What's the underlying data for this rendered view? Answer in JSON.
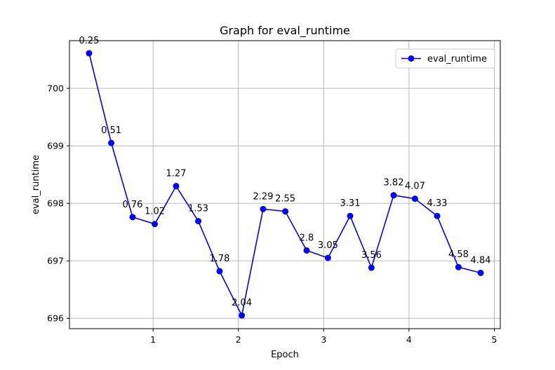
{
  "chart_data": {
    "type": "line",
    "title": "Graph for eval_runtime",
    "xlabel": "Epoch",
    "ylabel": "eval_runtime",
    "xlim": [
      0.02,
      5.07
    ],
    "ylim": [
      695.82,
      700.83
    ],
    "xticks": [
      1,
      2,
      3,
      4,
      5
    ],
    "yticks": [
      696,
      697,
      698,
      699,
      700
    ],
    "grid": true,
    "legend_position": "top-right",
    "series": [
      {
        "name": "eval_runtime",
        "color": "#0000ff",
        "points": [
          {
            "x": 0.25,
            "y": 700.61,
            "label": "0.25"
          },
          {
            "x": 0.51,
            "y": 699.05,
            "label": "0.51"
          },
          {
            "x": 0.76,
            "y": 697.76,
            "label": "0.76"
          },
          {
            "x": 1.02,
            "y": 697.64,
            "label": "1.02"
          },
          {
            "x": 1.27,
            "y": 698.3,
            "label": "1.27"
          },
          {
            "x": 1.53,
            "y": 697.69,
            "label": "1.53"
          },
          {
            "x": 1.78,
            "y": 696.82,
            "label": "1.78"
          },
          {
            "x": 2.04,
            "y": 696.05,
            "label": "2.04"
          },
          {
            "x": 2.29,
            "y": 697.9,
            "label": "2.29"
          },
          {
            "x": 2.55,
            "y": 697.86,
            "label": "2.55"
          },
          {
            "x": 2.8,
            "y": 697.18,
            "label": "2.8"
          },
          {
            "x": 3.05,
            "y": 697.05,
            "label": "3.05"
          },
          {
            "x": 3.31,
            "y": 697.78,
            "label": "3.31"
          },
          {
            "x": 3.56,
            "y": 696.88,
            "label": "3.56"
          },
          {
            "x": 3.82,
            "y": 698.14,
            "label": "3.82"
          },
          {
            "x": 4.07,
            "y": 698.08,
            "label": "4.07"
          },
          {
            "x": 4.33,
            "y": 697.78,
            "label": "4.33"
          },
          {
            "x": 4.58,
            "y": 696.89,
            "label": "4.58"
          },
          {
            "x": 4.84,
            "y": 696.79,
            "label": "4.84"
          }
        ]
      }
    ]
  }
}
